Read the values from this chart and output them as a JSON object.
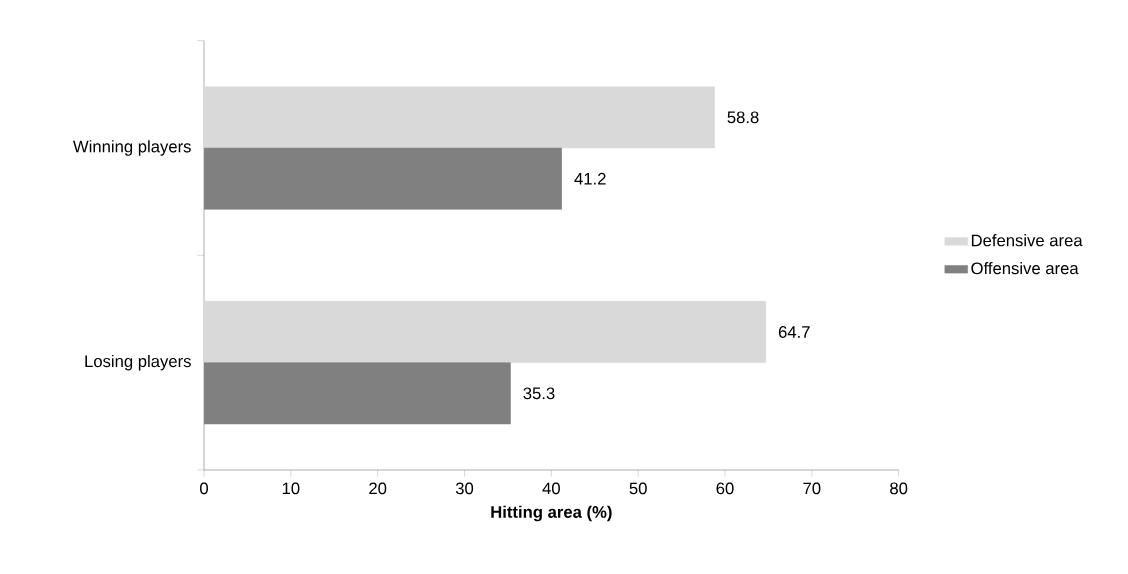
{
  "chart_data": {
    "type": "bar",
    "orientation": "horizontal",
    "xlabel": "Hitting area (%)",
    "categories": [
      "Winning players",
      "Losing players"
    ],
    "series": [
      {
        "name": "Defensive area",
        "color": "#d9d9d9",
        "values": [
          58.8,
          64.7
        ]
      },
      {
        "name": "Offensive area",
        "color": "#808080",
        "values": [
          41.2,
          35.3
        ]
      }
    ],
    "xlim": [
      0,
      80
    ],
    "xticks": [
      0,
      10,
      20,
      30,
      40,
      50,
      60,
      70,
      80
    ],
    "data_labels": true,
    "legend": "right",
    "grid": false
  }
}
